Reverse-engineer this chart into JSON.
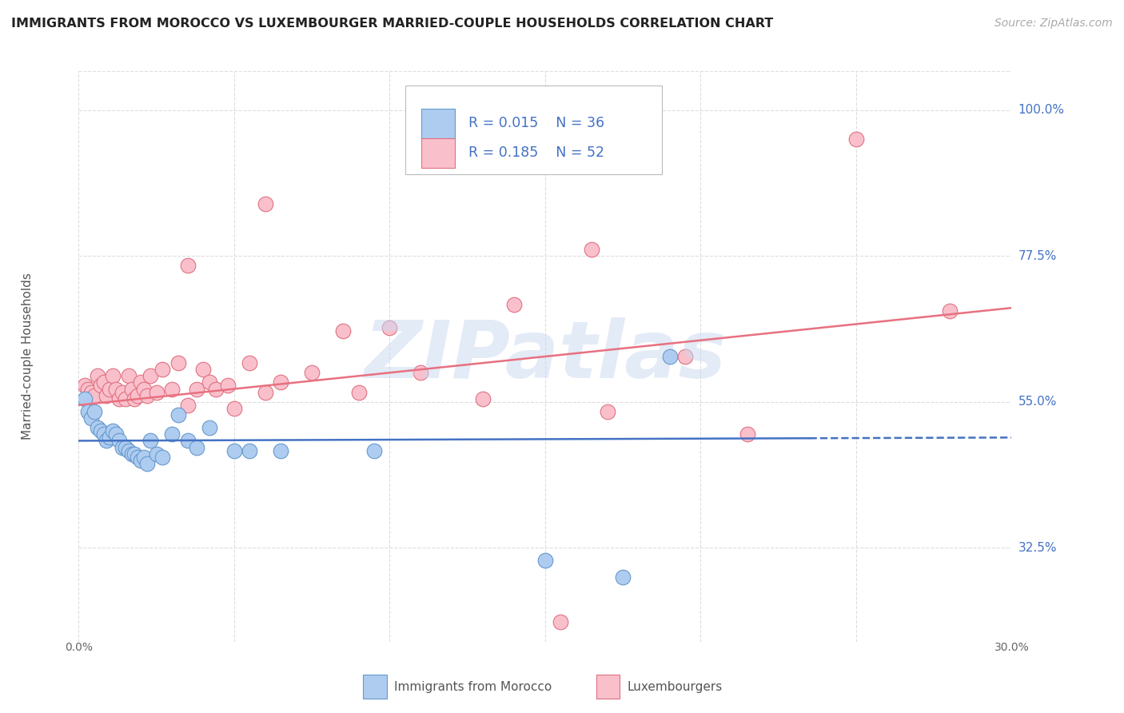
{
  "title": "IMMIGRANTS FROM MOROCCO VS LUXEMBOURGER MARRIED-COUPLE HOUSEHOLDS CORRELATION CHART",
  "source": "Source: ZipAtlas.com",
  "ylabel": "Married-couple Households",
  "legend_r_blue": "R = 0.015",
  "legend_n_blue": "N = 36",
  "legend_r_pink": "R = 0.185",
  "legend_n_pink": "N = 52",
  "legend_label_blue": "Immigrants from Morocco",
  "legend_label_pink": "Luxembourgers",
  "watermark": "ZIPatlas",
  "blue_color": "#aeccf0",
  "pink_color": "#f9c0cc",
  "blue_edge_color": "#6699cc",
  "pink_edge_color": "#e07080",
  "blue_line_color": "#4472c4",
  "pink_line_color": "#e87080",
  "label_color": "#4472c4",
  "xlim": [
    0.0,
    0.3
  ],
  "ylim": [
    0.18,
    1.06
  ],
  "ytick_vals": [
    0.325,
    0.55,
    0.775,
    1.0
  ],
  "ytick_labels": [
    "32.5%",
    "55.0%",
    "77.5%",
    "100.0%"
  ],
  "xtick_vals": [
    0.0,
    0.05,
    0.1,
    0.15,
    0.2,
    0.25,
    0.3
  ],
  "blue_scatter": [
    [
      0.002,
      0.555
    ],
    [
      0.003,
      0.535
    ],
    [
      0.004,
      0.525
    ],
    [
      0.005,
      0.535
    ],
    [
      0.006,
      0.51
    ],
    [
      0.007,
      0.505
    ],
    [
      0.008,
      0.5
    ],
    [
      0.009,
      0.49
    ],
    [
      0.01,
      0.495
    ],
    [
      0.011,
      0.505
    ],
    [
      0.012,
      0.5
    ],
    [
      0.013,
      0.49
    ],
    [
      0.014,
      0.48
    ],
    [
      0.015,
      0.48
    ],
    [
      0.016,
      0.475
    ],
    [
      0.017,
      0.47
    ],
    [
      0.018,
      0.47
    ],
    [
      0.019,
      0.465
    ],
    [
      0.02,
      0.46
    ],
    [
      0.021,
      0.465
    ],
    [
      0.022,
      0.455
    ],
    [
      0.023,
      0.49
    ],
    [
      0.025,
      0.47
    ],
    [
      0.027,
      0.465
    ],
    [
      0.03,
      0.5
    ],
    [
      0.032,
      0.53
    ],
    [
      0.035,
      0.49
    ],
    [
      0.038,
      0.48
    ],
    [
      0.042,
      0.51
    ],
    [
      0.05,
      0.475
    ],
    [
      0.055,
      0.475
    ],
    [
      0.065,
      0.475
    ],
    [
      0.095,
      0.475
    ],
    [
      0.19,
      0.62
    ],
    [
      0.175,
      0.28
    ],
    [
      0.15,
      0.305
    ]
  ],
  "pink_scatter": [
    [
      0.002,
      0.575
    ],
    [
      0.003,
      0.57
    ],
    [
      0.004,
      0.565
    ],
    [
      0.005,
      0.56
    ],
    [
      0.006,
      0.59
    ],
    [
      0.007,
      0.575
    ],
    [
      0.008,
      0.58
    ],
    [
      0.009,
      0.56
    ],
    [
      0.01,
      0.57
    ],
    [
      0.011,
      0.59
    ],
    [
      0.012,
      0.57
    ],
    [
      0.013,
      0.555
    ],
    [
      0.014,
      0.565
    ],
    [
      0.015,
      0.555
    ],
    [
      0.016,
      0.59
    ],
    [
      0.017,
      0.57
    ],
    [
      0.018,
      0.555
    ],
    [
      0.019,
      0.56
    ],
    [
      0.02,
      0.58
    ],
    [
      0.021,
      0.57
    ],
    [
      0.022,
      0.56
    ],
    [
      0.023,
      0.59
    ],
    [
      0.025,
      0.565
    ],
    [
      0.027,
      0.6
    ],
    [
      0.03,
      0.57
    ],
    [
      0.032,
      0.61
    ],
    [
      0.035,
      0.545
    ],
    [
      0.038,
      0.57
    ],
    [
      0.04,
      0.6
    ],
    [
      0.042,
      0.58
    ],
    [
      0.044,
      0.57
    ],
    [
      0.048,
      0.575
    ],
    [
      0.05,
      0.54
    ],
    [
      0.055,
      0.61
    ],
    [
      0.06,
      0.565
    ],
    [
      0.065,
      0.58
    ],
    [
      0.075,
      0.595
    ],
    [
      0.085,
      0.66
    ],
    [
      0.09,
      0.565
    ],
    [
      0.1,
      0.665
    ],
    [
      0.11,
      0.595
    ],
    [
      0.13,
      0.555
    ],
    [
      0.14,
      0.7
    ],
    [
      0.155,
      0.21
    ],
    [
      0.17,
      0.535
    ],
    [
      0.195,
      0.62
    ],
    [
      0.215,
      0.5
    ],
    [
      0.165,
      0.785
    ],
    [
      0.25,
      0.955
    ],
    [
      0.28,
      0.69
    ],
    [
      0.035,
      0.76
    ],
    [
      0.06,
      0.855
    ]
  ],
  "blue_trend_x": [
    0.0,
    0.3
  ],
  "blue_trend_y": [
    0.49,
    0.495
  ],
  "pink_trend_x": [
    0.0,
    0.3
  ],
  "pink_trend_y": [
    0.545,
    0.695
  ],
  "grid_color": "#dddddd",
  "background_color": "#ffffff"
}
